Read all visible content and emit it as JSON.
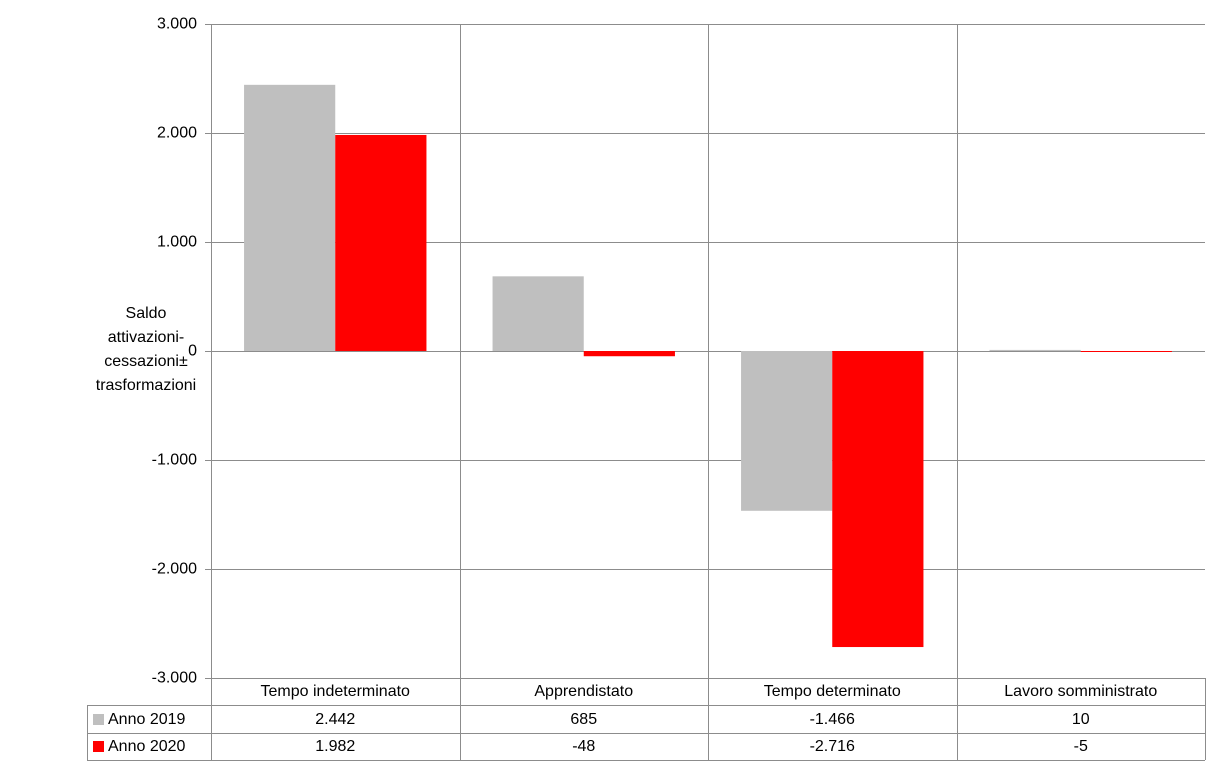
{
  "chart_data": {
    "type": "bar",
    "y_label": "Saldo attivazioni-cessazioni± trasformazioni",
    "categories": [
      "Tempo indeterminato",
      "Apprendistato",
      "Tempo determinato",
      "Lavoro somministrato"
    ],
    "series": [
      {
        "name": "Anno 2019",
        "color": "#bfbfbf",
        "values": [
          2442,
          685,
          -1466,
          10
        ],
        "value_labels": [
          "2.442",
          "685",
          "-1.466",
          "10"
        ]
      },
      {
        "name": "Anno 2020",
        "color": "#ff0000",
        "values": [
          1982,
          -48,
          -2716,
          -5
        ],
        "value_labels": [
          "1.982",
          "-48",
          "-2.716",
          "-5"
        ]
      }
    ],
    "ylim": [
      -3000,
      3000
    ],
    "yticks": [
      {
        "value": -3000,
        "label": "-3.000"
      },
      {
        "value": -2000,
        "label": "-2.000"
      },
      {
        "value": -1000,
        "label": "-1.000"
      },
      0,
      {
        "value": 1000,
        "label": "1.000"
      },
      {
        "value": 2000,
        "label": "2.000"
      },
      {
        "value": 3000,
        "label": "3.000"
      }
    ],
    "grid": true,
    "data_table": true
  }
}
